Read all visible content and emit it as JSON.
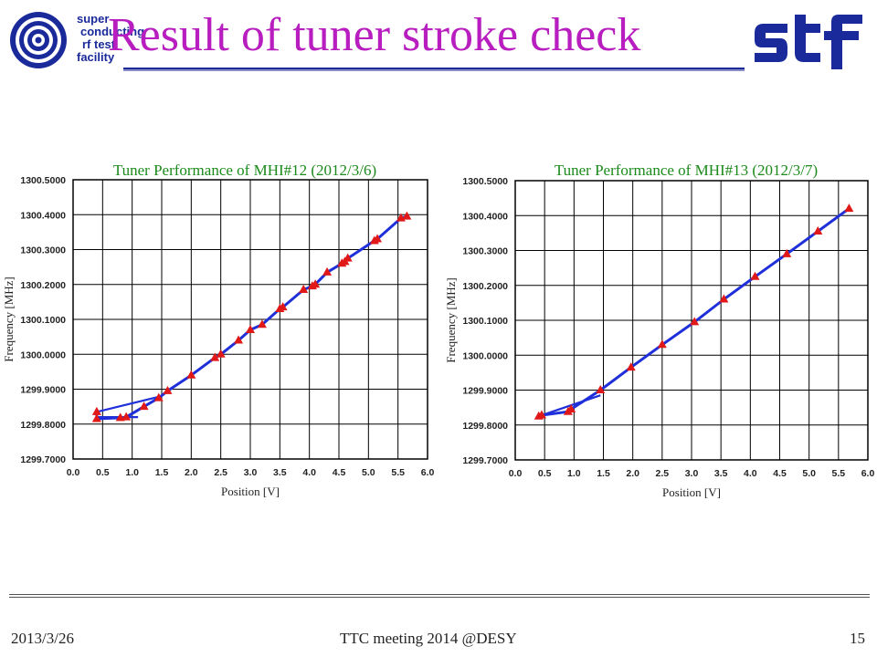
{
  "slide": {
    "title": "Result of tuner stroke check",
    "logo_lines": [
      "super-",
      "conducting",
      "rf  test",
      "facility"
    ],
    "brand_logo": "stf",
    "colors": {
      "title": "#b81dbf",
      "brand": "#1a2a9a",
      "chart_title": "#1a8a1a",
      "line": "#1f2fd9",
      "marker": "#e01818"
    }
  },
  "footer": {
    "date": "2013/3/26",
    "event": "TTC meeting 2014 @DESY",
    "page": "15"
  },
  "chart_data": [
    {
      "type": "line",
      "title": "Tuner Performance of MHI#12 (2012/3/6)",
      "xlabel": "Position [V]",
      "ylabel": "Frequency [MHz]",
      "xlim": [
        0.0,
        6.0
      ],
      "ylim": [
        1299.7,
        1300.5
      ],
      "xticks": [
        "0.0",
        "0.5",
        "1.0",
        "1.5",
        "2.0",
        "2.5",
        "3.0",
        "3.5",
        "4.0",
        "4.5",
        "5.0",
        "5.5",
        "6.0"
      ],
      "yticks": [
        "1299.7000",
        "1299.8000",
        "1299.9000",
        "1300.0000",
        "1300.1000",
        "1300.2000",
        "1300.3000",
        "1300.4000",
        "1300.5000"
      ],
      "grid": true,
      "series": [
        {
          "x": [
            0.4,
            0.4,
            0.8,
            0.9,
            1.2,
            1.45,
            1.6,
            2.0,
            2.4,
            2.5,
            2.8,
            3.0,
            3.2,
            3.5,
            3.55,
            3.9,
            4.05,
            4.1,
            4.3,
            4.55,
            4.6,
            4.65,
            5.1,
            5.15,
            5.55,
            5.65
          ],
          "y": [
            1299.835,
            1299.815,
            1299.818,
            1299.82,
            1299.85,
            1299.875,
            1299.895,
            1299.94,
            1299.99,
            1300.0,
            1300.04,
            1300.07,
            1300.085,
            1300.13,
            1300.135,
            1300.185,
            1300.195,
            1300.2,
            1300.235,
            1300.26,
            1300.265,
            1300.275,
            1300.325,
            1300.33,
            1300.39,
            1300.395
          ]
        },
        {
          "x": [
            0.4,
            1.5
          ],
          "y": [
            1299.835,
            1299.88
          ]
        },
        {
          "x": [
            0.4,
            1.1
          ],
          "y": [
            1299.82,
            1299.82
          ]
        }
      ]
    },
    {
      "type": "line",
      "title": "Tuner Performance of MHI#13 (2012/3/7)",
      "xlabel": "Position [V]",
      "ylabel": "Frequency [MHz]",
      "xlim": [
        0.0,
        6.0
      ],
      "ylim": [
        1299.7,
        1300.5
      ],
      "xticks": [
        "0.0",
        "0.5",
        "1.0",
        "1.5",
        "2.0",
        "2.5",
        "3.0",
        "3.5",
        "4.0",
        "4.5",
        "5.0",
        "5.5",
        "6.0"
      ],
      "yticks": [
        "1299.7000",
        "1299.8000",
        "1299.9000",
        "1300.0000",
        "1300.1000",
        "1300.2000",
        "1300.3000",
        "1300.4000",
        "1300.5000"
      ],
      "grid": true,
      "series": [
        {
          "x": [
            0.4,
            0.45,
            0.9,
            0.95,
            1.45,
            1.97,
            2.5,
            3.05,
            3.55,
            4.08,
            4.62,
            5.15,
            5.68
          ],
          "y": [
            1299.825,
            1299.828,
            1299.838,
            1299.845,
            1299.9,
            1299.965,
            1300.03,
            1300.095,
            1300.16,
            1300.225,
            1300.29,
            1300.355,
            1300.42
          ]
        },
        {
          "x": [
            0.4,
            1.45
          ],
          "y": [
            1299.825,
            1299.885
          ]
        }
      ]
    }
  ]
}
